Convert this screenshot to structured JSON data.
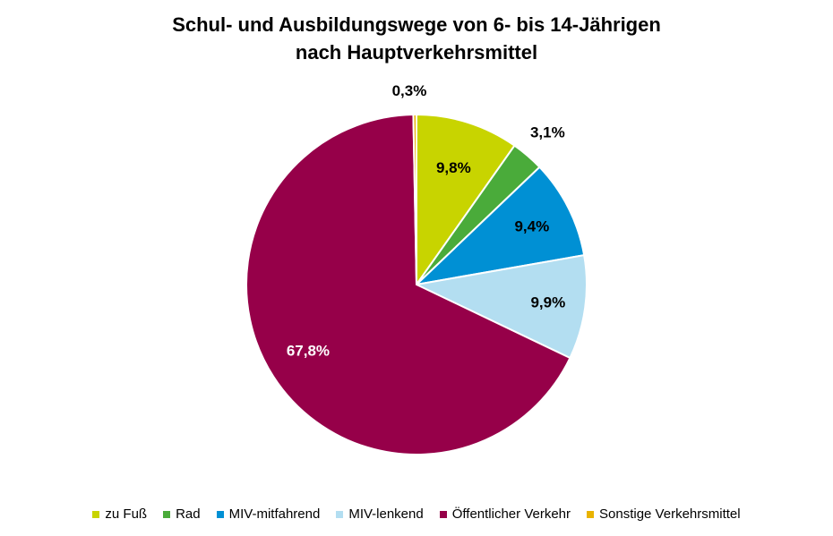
{
  "chart_data": {
    "type": "pie",
    "title_lines": [
      "Schul- und Ausbildungswege von 6- bis 14-Jährigen",
      "nach Hauptverkehrsmittel"
    ],
    "slices": [
      {
        "name": "zu Fuß",
        "value": 9.8,
        "label": "9,8%",
        "color": "#c8d400"
      },
      {
        "name": "Rad",
        "value": 3.1,
        "label": "3,1%",
        "color": "#4aab3a"
      },
      {
        "name": "MIV-mitfahrend",
        "value": 9.4,
        "label": "9,4%",
        "color": "#0090d4"
      },
      {
        "name": "MIV-lenkend",
        "value": 9.9,
        "label": "9,9%",
        "color": "#b3def1"
      },
      {
        "name": "Öffentlicher Verkehr",
        "value": 67.8,
        "label": "67,8%",
        "color": "#960049",
        "label_color": "#ffffff"
      },
      {
        "name": "Sonstige Verkehrsmittel",
        "value": 0.3,
        "label": "0,3%",
        "color": "#e9b300"
      }
    ],
    "start_angle_deg": 0,
    "direction": "clockwise",
    "legend_position": "bottom"
  }
}
